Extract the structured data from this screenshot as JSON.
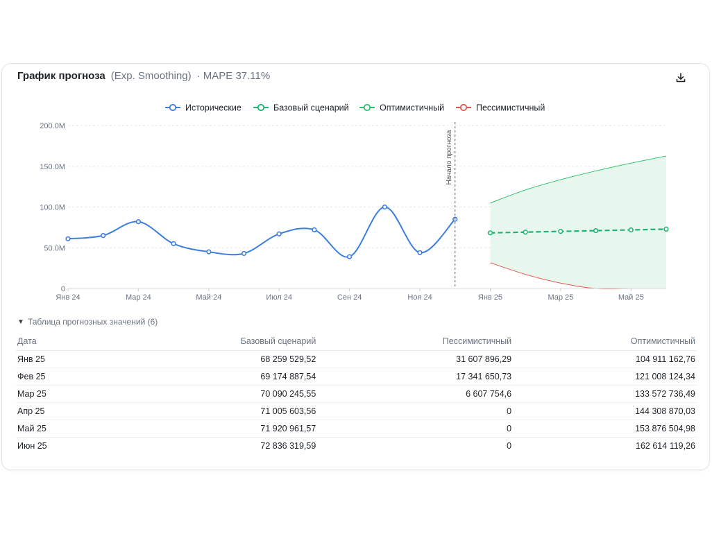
{
  "card": {
    "title": "График прогноза",
    "method": "(Exp. Smoothing)",
    "mape": "· MAPE 37.11%",
    "download_icon": "download-icon"
  },
  "chart_data": {
    "type": "line",
    "legend": {
      "placement": "top-center",
      "items": [
        "Исторические",
        "Базовый сценарий",
        "Оптимистичный",
        "Пессимистичный"
      ]
    },
    "colors": {
      "historical": "#3b7ddd",
      "base": "#1db372",
      "optimistic": "#2cc26a",
      "pessimistic": "#e0584e",
      "band_fill": "#e8f7ee"
    },
    "y_axis": {
      "ylim": [
        0,
        200000000
      ],
      "ticks": [
        0,
        50000000,
        100000000,
        150000000,
        200000000
      ],
      "tick_labels": [
        "0",
        "50.0M",
        "100.0M",
        "150.0M",
        "200.0M"
      ],
      "grid": true
    },
    "x_axis": {
      "xlim": [
        "2024-01",
        "2025-06"
      ],
      "ticks": [
        "2024-01",
        "2024-03",
        "2024-05",
        "2024-07",
        "2024-09",
        "2024-11",
        "2025-01",
        "2025-03",
        "2025-05"
      ],
      "tick_labels": [
        "Янв 24",
        "Мар 24",
        "Май 24",
        "Июл 24",
        "Сен 24",
        "Ноя 24",
        "Янв 25",
        "Мар 25",
        "Май 25"
      ]
    },
    "forecast_start": {
      "x": "2024-12",
      "label": "Начало прогноза"
    },
    "series": [
      {
        "name": "Исторические",
        "key": "historical",
        "x": [
          "2024-01",
          "2024-02",
          "2024-03",
          "2024-04",
          "2024-05",
          "2024-06",
          "2024-07",
          "2024-08",
          "2024-09",
          "2024-10",
          "2024-11",
          "2024-12"
        ],
        "values": [
          61000000,
          65000000,
          82000000,
          55000000,
          45000000,
          43000000,
          67000000,
          72000000,
          39000000,
          100000000,
          44000000,
          85000000
        ]
      },
      {
        "name": "Базовый сценарий",
        "key": "base",
        "x": [
          "2025-01",
          "2025-02",
          "2025-03",
          "2025-04",
          "2025-05",
          "2025-06"
        ],
        "values": [
          68259529.52,
          69174887.54,
          70090245.55,
          71005603.56,
          71920961.57,
          72836319.59
        ]
      },
      {
        "name": "Оптимистичный",
        "key": "optimistic",
        "x": [
          "2025-01",
          "2025-02",
          "2025-03",
          "2025-04",
          "2025-05",
          "2025-06"
        ],
        "values": [
          104911162.76,
          121008124.34,
          133572736.49,
          144308870.03,
          153876504.98,
          162614119.26
        ]
      },
      {
        "name": "Пессимистичный",
        "key": "pessimistic",
        "x": [
          "2025-01",
          "2025-02",
          "2025-03",
          "2025-04",
          "2025-05",
          "2025-06"
        ],
        "values": [
          31607896.29,
          17341650.73,
          6607754.6,
          0,
          0,
          0
        ]
      }
    ]
  },
  "table": {
    "toggle_icon": "triangle-down-icon",
    "toggle_label": "Таблица прогнозных значений (6)",
    "headers": [
      "Дата",
      "Базовый сценарий",
      "Пессимистичный",
      "Оптимистичный"
    ],
    "rows": [
      [
        "Янв 25",
        "68 259 529,52",
        "31 607 896,29",
        "104 911 162,76"
      ],
      [
        "Фев 25",
        "69 174 887,54",
        "17 341 650,73",
        "121 008 124,34"
      ],
      [
        "Мар 25",
        "70 090 245,55",
        "6 607 754,6",
        "133 572 736,49"
      ],
      [
        "Апр 25",
        "71 005 603,56",
        "0",
        "144 308 870,03"
      ],
      [
        "Май 25",
        "71 920 961,57",
        "0",
        "153 876 504,98"
      ],
      [
        "Июн 25",
        "72 836 319,59",
        "0",
        "162 614 119,26"
      ]
    ]
  }
}
